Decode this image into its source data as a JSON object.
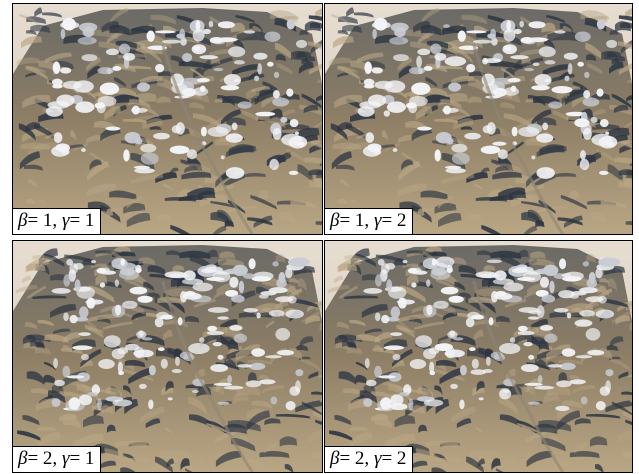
{
  "panels": [
    {
      "beta_symbol": "β",
      "beta_value": "= 1,",
      "gamma_symbol": "γ",
      "gamma_value": "= 1"
    },
    {
      "beta_symbol": "β",
      "beta_value": "= 1,",
      "gamma_symbol": "γ",
      "gamma_value": "= 2"
    },
    {
      "beta_symbol": "β",
      "beta_value": "= 2,",
      "gamma_symbol": "γ",
      "gamma_value": "= 1"
    },
    {
      "beta_symbol": "β",
      "beta_value": "= 2,",
      "gamma_symbol": "γ",
      "gamma_value": "= 2"
    }
  ],
  "colors": {
    "sky": "#e3d9cc",
    "rock_light": "#b9a684",
    "rock_dark": "#2c3542",
    "snow": "#f3f4f7",
    "border": "#000000"
  }
}
